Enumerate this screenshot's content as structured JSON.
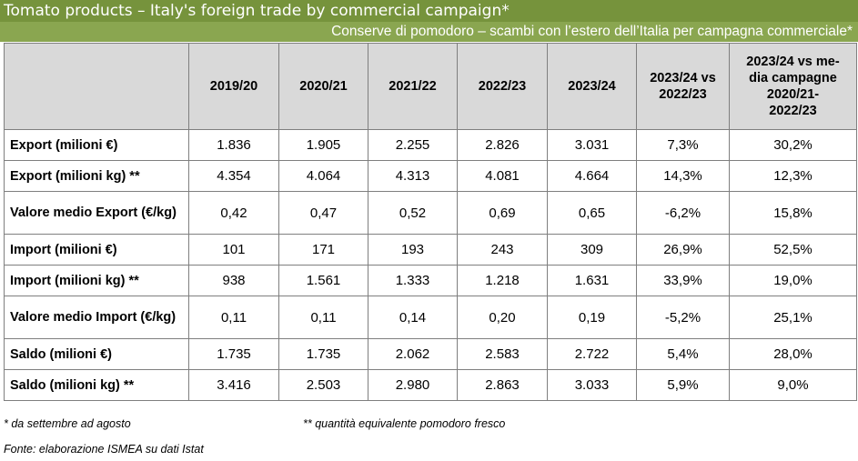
{
  "title": "Tomato products – Italy's foreign trade by commercial campaign*",
  "subtitle": "Conserve di pomodoro – scambi con l’estero dell’Italia per campagna commerciale*",
  "table": {
    "headers": [
      "",
      "2019/20",
      "2020/21",
      "2021/22",
      "2022/23",
      "2023/24",
      "2023/24 vs 2022/23",
      "2023/24 vs me-dia campagne 2020/21-2022/23"
    ],
    "rows": [
      {
        "label": "Export (milioni €)",
        "values": [
          "1.836",
          "1.905",
          "2.255",
          "2.826",
          "3.031",
          "7,3%",
          "30,2%"
        ]
      },
      {
        "label": "Export (milioni kg) **",
        "values": [
          "4.354",
          "4.064",
          "4.313",
          "4.081",
          "4.664",
          "14,3%",
          "12,3%"
        ]
      },
      {
        "label": "Valore medio Export (€/kg)",
        "values": [
          "0,42",
          "0,47",
          "0,52",
          "0,69",
          "0,65",
          "-6,2%",
          "15,8%"
        ]
      },
      {
        "label": "Import (milioni €)",
        "values": [
          "101",
          "171",
          "193",
          "243",
          "309",
          "26,9%",
          "52,5%"
        ]
      },
      {
        "label": "Import (milioni kg) **",
        "values": [
          "938",
          "1.561",
          "1.333",
          "1.218",
          "1.631",
          "33,9%",
          "19,0%"
        ]
      },
      {
        "label": "Valore medio Import (€/kg)",
        "values": [
          "0,11",
          "0,11",
          "0,14",
          "0,20",
          "0,19",
          "-5,2%",
          "25,1%"
        ]
      },
      {
        "label": "Saldo (milioni €)",
        "values": [
          "1.735",
          "1.735",
          "2.062",
          "2.583",
          "2.722",
          "5,4%",
          "28,0%"
        ]
      },
      {
        "label": "Saldo (milioni kg) **",
        "values": [
          "3.416",
          "2.503",
          "2.980",
          "2.863",
          "3.033",
          "5,9%",
          "9,0%"
        ]
      }
    ]
  },
  "notes": {
    "season": "* da settembre ad agosto",
    "equivalent": "** quantità equivalente pomodoro fresco",
    "source": "Fonte: elaborazione ISMEA su dati Istat"
  },
  "colors": {
    "title_bg": "#76933c",
    "subtitle_bg": "#8aa650",
    "header_bg": "#d9d9d9"
  }
}
